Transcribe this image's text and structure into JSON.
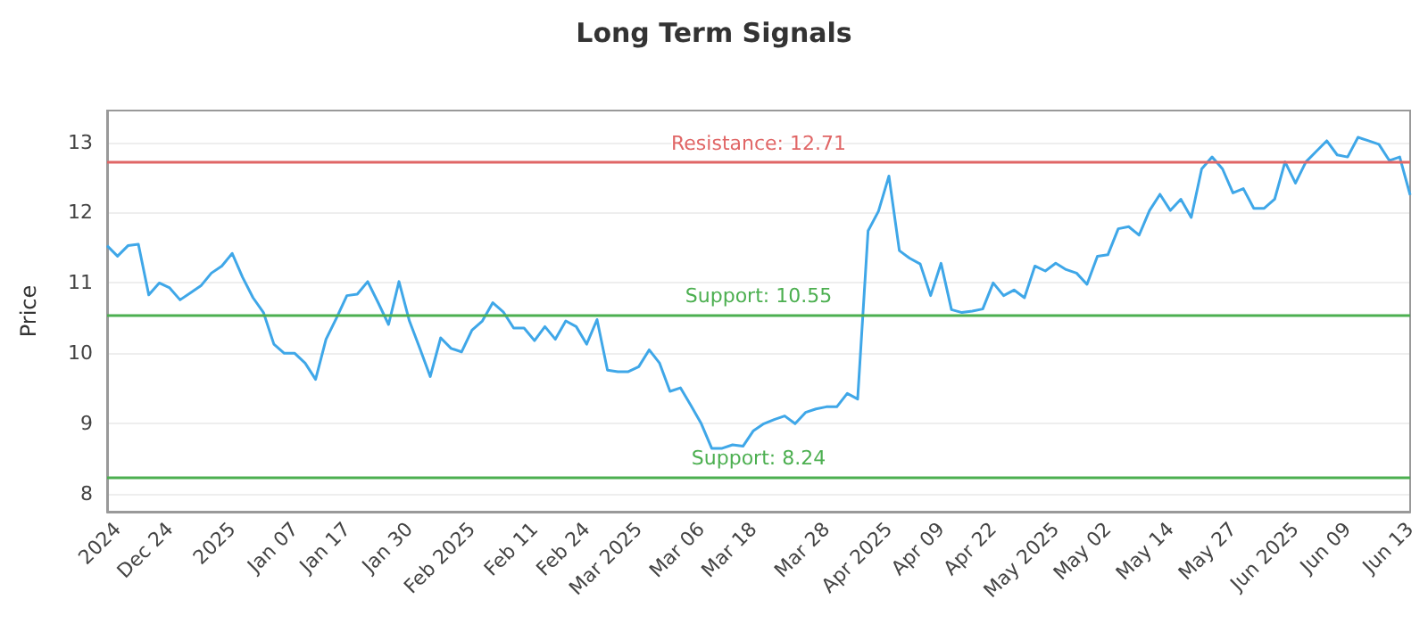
{
  "chart_data": {
    "type": "line",
    "title": "Long Term Signals",
    "ylabel": "Price",
    "categories": [
      null,
      "2024",
      null,
      null,
      null,
      null,
      "Dec 24",
      null,
      null,
      null,
      null,
      null,
      "2025",
      null,
      null,
      null,
      null,
      null,
      "Jan 07",
      null,
      null,
      null,
      null,
      "Jan 17",
      null,
      null,
      null,
      null,
      null,
      "Jan 30",
      null,
      null,
      null,
      null,
      null,
      "Feb 2025",
      null,
      null,
      null,
      null,
      null,
      "Feb 11",
      null,
      null,
      null,
      null,
      "Feb 24",
      null,
      null,
      null,
      null,
      "Mar 2025",
      null,
      null,
      null,
      null,
      null,
      "Mar 06",
      null,
      null,
      null,
      null,
      "Mar 18",
      null,
      null,
      null,
      null,
      null,
      null,
      "Mar 28",
      null,
      null,
      null,
      null,
      null,
      "Apr 2025",
      null,
      null,
      null,
      null,
      "Apr 09",
      null,
      null,
      null,
      null,
      "Apr 22",
      null,
      null,
      null,
      null,
      null,
      "May 2025",
      null,
      null,
      null,
      null,
      "May 02",
      null,
      null,
      null,
      null,
      null,
      "May 14",
      null,
      null,
      null,
      null,
      null,
      "May 27",
      null,
      null,
      null,
      null,
      null,
      "Jun 2025",
      null,
      null,
      null,
      null,
      "Jun 09",
      null,
      null,
      null,
      null,
      null,
      "Jun 13"
    ],
    "series": [
      {
        "color": "#3fa7e8",
        "values": [
          11.53,
          11.38,
          11.53,
          11.55,
          10.83,
          11.0,
          10.93,
          10.76,
          10.86,
          10.96,
          11.14,
          11.24,
          11.42,
          11.08,
          10.79,
          10.58,
          10.13,
          10.0,
          10.0,
          9.86,
          9.63,
          10.2,
          10.5,
          10.82,
          10.84,
          11.02,
          10.72,
          10.41,
          11.02,
          10.46,
          10.07,
          9.67,
          10.22,
          10.07,
          10.02,
          10.33,
          10.46,
          10.72,
          10.59,
          10.36,
          10.36,
          10.18,
          10.38,
          10.2,
          10.46,
          10.38,
          10.13,
          10.48,
          9.76,
          9.74,
          9.74,
          9.81,
          10.05,
          9.86,
          9.46,
          9.51,
          9.26,
          9.0,
          8.65,
          8.65,
          8.7,
          8.68,
          8.9,
          9.0,
          9.06,
          9.11,
          9.0,
          9.16,
          9.21,
          9.24,
          9.24,
          9.43,
          9.35,
          11.74,
          12.02,
          12.52,
          11.46,
          11.35,
          11.27,
          10.82,
          11.28,
          10.62,
          10.58,
          10.6,
          10.63,
          11.0,
          10.82,
          10.9,
          10.79,
          11.24,
          11.17,
          11.28,
          11.19,
          11.14,
          10.98,
          11.38,
          11.4,
          11.77,
          11.8,
          11.68,
          12.03,
          12.26,
          12.03,
          12.19,
          11.93,
          12.62,
          12.79,
          12.62,
          12.28,
          12.34,
          12.06,
          12.06,
          12.19,
          12.72,
          12.42,
          12.72,
          12.87,
          13.02,
          12.82,
          12.79,
          13.07,
          13.02,
          12.97,
          12.74,
          12.79,
          12.25
        ]
      }
    ],
    "ylim": [
      7.75,
      13.45
    ],
    "yticks": [
      8,
      9,
      10,
      11,
      12,
      13
    ],
    "grid": "y",
    "marker": "none",
    "line_style": "solid",
    "ref_lines": [
      {
        "axis": "y",
        "value": 12.71,
        "label": "Resistance: 12.71",
        "color": "#e06666"
      },
      {
        "axis": "y",
        "value": 10.55,
        "label": "Support: 10.55",
        "color": "#4caf50"
      },
      {
        "axis": "y",
        "value": 8.24,
        "label": "Support: 8.24",
        "color": "#4caf50"
      }
    ]
  }
}
